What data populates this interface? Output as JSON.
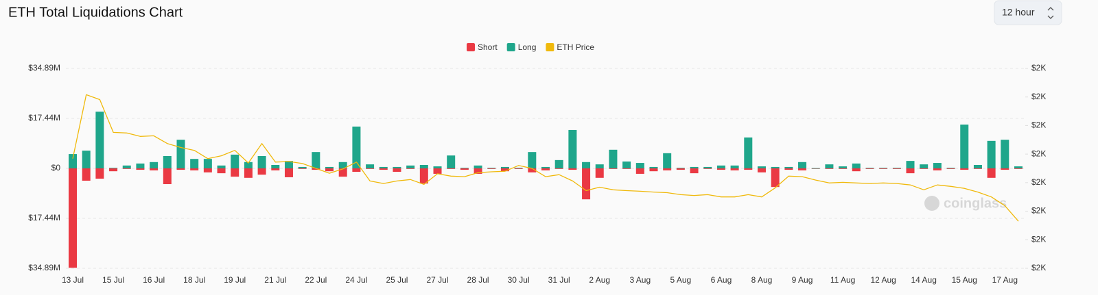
{
  "chart_data": {
    "type": "bar",
    "title": "ETH Total Liquidations Chart",
    "categories": [
      "13 Jul",
      null,
      null,
      "15 Jul",
      null,
      null,
      "16 Jul",
      null,
      null,
      "18 Jul",
      null,
      null,
      "19 Jul",
      null,
      null,
      "21 Jul",
      null,
      null,
      "22 Jul",
      null,
      null,
      "24 Jul",
      null,
      null,
      "25 Jul",
      null,
      null,
      "27 Jul",
      null,
      null,
      "28 Jul",
      null,
      null,
      "30 Jul",
      null,
      null,
      "31 Jul",
      null,
      null,
      "2 Aug",
      null,
      null,
      "3 Aug",
      null,
      null,
      "5 Aug",
      null,
      null,
      "6 Aug",
      null,
      null,
      "8 Aug",
      null,
      null,
      "9 Aug",
      null,
      null,
      "11 Aug",
      null,
      null,
      "12 Aug",
      null,
      null,
      "14 Aug",
      null,
      null,
      "15 Aug",
      null,
      null,
      "17 Aug",
      null
    ],
    "series": [
      {
        "name": "Short",
        "color": "#ea3943",
        "values": [
          -34.7,
          -4.3,
          -3.6,
          -1.0,
          -0.2,
          -0.5,
          -0.7,
          -5.5,
          -0.5,
          -0.7,
          -1.4,
          -1.7,
          -2.9,
          -3.3,
          -2.2,
          -0.7,
          -3.1,
          -0.1,
          -0.5,
          -1.0,
          -2.9,
          -1.2,
          -0.2,
          -0.5,
          -1.2,
          -0.2,
          -5.3,
          -1.9,
          -0.2,
          -0.5,
          -1.9,
          -0.2,
          -1.0,
          -0.2,
          -1.4,
          -0.7,
          -0.2,
          -0.5,
          -10.8,
          -3.3,
          -0.2,
          -0.2,
          -1.9,
          -1.0,
          -0.7,
          -0.5,
          -1.7,
          -0.2,
          -0.5,
          -0.7,
          -0.5,
          -1.4,
          -6.5,
          -0.5,
          -0.7,
          -0.2,
          -0.2,
          -0.2,
          -1.0,
          -0.2,
          -0.1,
          -0.2,
          -1.7,
          -0.2,
          -0.7,
          -0.2,
          -0.5,
          -0.2,
          -3.3,
          -0.5,
          -0.2
        ]
      },
      {
        "name": "Long",
        "color": "#1fa68b",
        "values": [
          5.0,
          6.2,
          19.8,
          0.2,
          1.0,
          1.7,
          2.2,
          4.3,
          10.0,
          3.3,
          3.3,
          1.0,
          4.8,
          2.2,
          4.3,
          1.2,
          2.6,
          0.5,
          5.7,
          0.5,
          2.2,
          14.6,
          1.4,
          0.5,
          0.5,
          1.0,
          1.2,
          0.7,
          4.5,
          0.2,
          1.0,
          0.2,
          0.5,
          0.2,
          5.7,
          0.5,
          2.9,
          13.4,
          2.2,
          1.4,
          6.5,
          2.4,
          1.9,
          0.5,
          5.3,
          0.2,
          0.5,
          0.5,
          1.0,
          1.0,
          10.8,
          0.7,
          0.5,
          0.5,
          2.2,
          0.1,
          1.4,
          0.7,
          1.7,
          0.2,
          0.2,
          0.2,
          2.6,
          1.4,
          1.9,
          0.2,
          15.3,
          1.2,
          9.6,
          10.0,
          0.7
        ]
      },
      {
        "name": "ETH Price",
        "color": "#f0b90b",
        "type": "line",
        "axis": "y2",
        "values": [
          2084,
          2308,
          2291,
          2176,
          2174,
          2162,
          2164,
          2137,
          2123,
          2113,
          2084,
          2094,
          2113,
          2069,
          2137,
          2072,
          2074,
          2067,
          2050,
          2033,
          2048,
          2072,
          2006,
          1997,
          2006,
          2011,
          1994,
          2031,
          2023,
          2021,
          2035,
          2038,
          2040,
          2060,
          2050,
          2021,
          2028,
          2006,
          1972,
          1984,
          1975,
          1972,
          1970,
          1967,
          1965,
          1958,
          1955,
          1958,
          1950,
          1950,
          1958,
          1950,
          1982,
          2023,
          2021,
          2009,
          1999,
          2001,
          1999,
          1997,
          1999,
          1997,
          1992,
          1975,
          1992,
          1987,
          1980,
          1967,
          1950,
          1919,
          1865
        ]
      }
    ],
    "ylim": [
      -34.89,
      34.89
    ],
    "yticks": [
      {
        "value": 34.89,
        "label": "$34.89M"
      },
      {
        "value": 17.44,
        "label": "$17.44M"
      },
      {
        "value": 0,
        "label": "$0"
      },
      {
        "value": -17.44,
        "label": "$17.44M"
      },
      {
        "value": -34.89,
        "label": "$34.89M"
      }
    ],
    "y2lim": [
      1700,
      2400
    ],
    "y2ticks": [
      {
        "value": 2400,
        "label": "$2K"
      },
      {
        "value": 2300,
        "label": "$2K"
      },
      {
        "value": 2200,
        "label": "$2K"
      },
      {
        "value": 2100,
        "label": "$2K"
      },
      {
        "value": 2000,
        "label": "$2K"
      },
      {
        "value": 1900,
        "label": "$2K"
      },
      {
        "value": 1800,
        "label": "$2K"
      },
      {
        "value": 1700,
        "label": "$2K"
      }
    ],
    "grid": true,
    "legend": "top"
  },
  "controls": {
    "interval": "12 hour"
  },
  "watermark": "coinglass"
}
